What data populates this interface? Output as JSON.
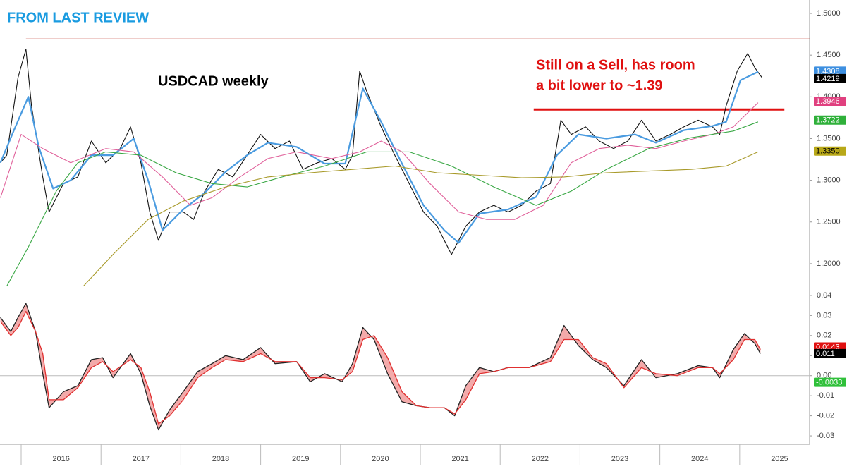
{
  "chart_data": [
    {
      "type": "line",
      "title": "FROM LAST REVIEW",
      "annotations": [
        "USDCAD weekly",
        "Still on a Sell, has room",
        "a bit lower to ~1.39"
      ],
      "xlim": [
        2015.735,
        2025.876
      ],
      "ylim": [
        1.1737,
        1.5161
      ],
      "yticks": [
        {
          "value": 1.5,
          "label": "1.5000"
        },
        {
          "value": 1.45,
          "label": "1.4500"
        },
        {
          "value": 1.4,
          "label": "1.4000"
        },
        {
          "value": 1.35,
          "label": "1.3500"
        },
        {
          "value": 1.3,
          "label": "1.3000"
        },
        {
          "value": 1.25,
          "label": "1.2500"
        },
        {
          "value": 1.2,
          "label": "1.2000"
        }
      ],
      "x": [
        2015.74,
        2015.82,
        2015.96,
        2016.06,
        2016.13,
        2016.27,
        2016.35,
        2016.53,
        2016.71,
        2016.88,
        2017.06,
        2017.24,
        2017.37,
        2017.5,
        2017.61,
        2017.72,
        2017.86,
        2018.03,
        2018.16,
        2018.3,
        2018.47,
        2018.65,
        2018.83,
        2019.0,
        2019.18,
        2019.36,
        2019.53,
        2019.71,
        2019.89,
        2020.06,
        2020.15,
        2020.24,
        2020.33,
        2020.51,
        2020.68,
        2020.86,
        2021.04,
        2021.21,
        2021.39,
        2021.57,
        2021.74,
        2021.92,
        2022.1,
        2022.27,
        2022.45,
        2022.63,
        2022.76,
        2022.89,
        2023.07,
        2023.24,
        2023.42,
        2023.6,
        2023.77,
        2023.95,
        2024.13,
        2024.3,
        2024.48,
        2024.66,
        2024.75,
        2024.83,
        2024.97,
        2025.1,
        2025.19,
        2025.28
      ],
      "series": [
        {
          "color": "#111111",
          "values": [
            1.321,
            1.33,
            1.423,
            1.457,
            1.389,
            1.304,
            1.262,
            1.296,
            1.304,
            1.347,
            1.321,
            1.338,
            1.364,
            1.321,
            1.262,
            1.228,
            1.262,
            1.262,
            1.253,
            1.287,
            1.313,
            1.304,
            1.33,
            1.355,
            1.338,
            1.347,
            1.313,
            1.321,
            1.326,
            1.313,
            1.33,
            1.431,
            1.406,
            1.364,
            1.33,
            1.296,
            1.262,
            1.245,
            1.211,
            1.245,
            1.262,
            1.27,
            1.262,
            1.27,
            1.287,
            1.296,
            1.372,
            1.355,
            1.364,
            1.347,
            1.338,
            1.347,
            1.372,
            1.347,
            1.355,
            1.364,
            1.372,
            1.364,
            1.355,
            1.389,
            1.431,
            1.452,
            1.435,
            1.423
          ]
        },
        {
          "color": "#4a9be0",
          "x": [
            2015.74,
            2015.91,
            2016.09,
            2016.22,
            2016.4,
            2016.62,
            2016.88,
            2017.15,
            2017.41,
            2017.59,
            2017.77,
            2018.03,
            2018.3,
            2018.56,
            2018.83,
            2019.09,
            2019.45,
            2019.8,
            2020.06,
            2020.28,
            2020.51,
            2020.77,
            2021.04,
            2021.3,
            2021.48,
            2021.74,
            2022.1,
            2022.45,
            2022.71,
            2022.98,
            2023.33,
            2023.69,
            2023.95,
            2024.3,
            2024.66,
            2024.83,
            2025.01,
            2025.23
          ],
          "values": [
            1.321,
            1.36,
            1.4,
            1.34,
            1.29,
            1.3,
            1.33,
            1.33,
            1.35,
            1.3,
            1.24,
            1.265,
            1.285,
            1.31,
            1.33,
            1.345,
            1.34,
            1.32,
            1.32,
            1.41,
            1.37,
            1.32,
            1.27,
            1.24,
            1.225,
            1.26,
            1.265,
            1.28,
            1.33,
            1.355,
            1.35,
            1.355,
            1.345,
            1.36,
            1.365,
            1.37,
            1.42,
            1.43
          ]
        },
        {
          "color": "#e0609a",
          "x": [
            2015.74,
            2016.0,
            2016.27,
            2016.62,
            2017.06,
            2017.41,
            2017.77,
            2018.12,
            2018.39,
            2018.74,
            2019.09,
            2019.45,
            2019.89,
            2020.24,
            2020.51,
            2020.77,
            2021.12,
            2021.48,
            2021.83,
            2022.18,
            2022.54,
            2022.89,
            2023.24,
            2023.6,
            2023.95,
            2024.3,
            2024.66,
            2024.92,
            2025.23
          ],
          "values": [
            1.279,
            1.355,
            1.338,
            1.321,
            1.338,
            1.334,
            1.304,
            1.27,
            1.279,
            1.304,
            1.326,
            1.334,
            1.326,
            1.334,
            1.347,
            1.334,
            1.296,
            1.262,
            1.253,
            1.253,
            1.27,
            1.321,
            1.338,
            1.342,
            1.338,
            1.347,
            1.355,
            1.364,
            1.393
          ]
        },
        {
          "color": "#3aa845",
          "x": [
            2015.82,
            2016.09,
            2016.44,
            2016.71,
            2017.06,
            2017.5,
            2017.94,
            2018.39,
            2018.83,
            2019.27,
            2019.8,
            2020.33,
            2020.86,
            2021.39,
            2021.92,
            2022.45,
            2022.89,
            2023.33,
            2023.86,
            2024.39,
            2024.92,
            2025.23
          ],
          "values": [
            1.173,
            1.22,
            1.287,
            1.321,
            1.334,
            1.33,
            1.309,
            1.296,
            1.292,
            1.304,
            1.317,
            1.334,
            1.334,
            1.317,
            1.292,
            1.27,
            1.287,
            1.313,
            1.338,
            1.351,
            1.359,
            1.37
          ]
        },
        {
          "color": "#a89a2a",
          "x": [
            2016.78,
            2017.15,
            2017.59,
            2018.03,
            2018.56,
            2019.09,
            2019.62,
            2020.15,
            2020.68,
            2021.21,
            2021.74,
            2022.27,
            2022.8,
            2023.33,
            2023.86,
            2024.39,
            2024.83,
            2025.23
          ],
          "values": [
            1.173,
            1.211,
            1.253,
            1.275,
            1.292,
            1.304,
            1.309,
            1.313,
            1.317,
            1.309,
            1.306,
            1.303,
            1.304,
            1.309,
            1.311,
            1.313,
            1.317,
            1.334
          ]
        }
      ],
      "hlines": [
        {
          "value": 1.4694,
          "x": [
            2016.06,
            2025.876
          ],
          "color": "#c0392b"
        },
        {
          "value": 1.3848,
          "x": [
            2022.42,
            2025.56
          ],
          "color": "#e01010"
        }
      ],
      "tags": {
        "values": [
          1.4308,
          1.4219,
          1.3946,
          1.3722,
          1.335
        ],
        "value_labels": [
          "1.4308",
          "1.4219",
          "1.3946",
          "1.3722",
          "1.3350"
        ],
        "colors": [
          "#3d8fe0",
          "#000000",
          "#e0407f",
          "#2fb03a",
          "#b8a818"
        ]
      }
    },
    {
      "type": "line",
      "xlim": [
        2015.735,
        2025.876
      ],
      "xticks": [
        2016,
        2017,
        2018,
        2019,
        2020,
        2021,
        2022,
        2023,
        2024,
        2025
      ],
      "ylim": [
        -0.0342,
        0.0449
      ],
      "yticks": [
        0.04,
        0.03,
        0.02,
        0.01,
        {
          "value": 0,
          "label": "0.00"
        },
        -0.01,
        -0.02,
        -0.03
      ],
      "x": [
        2015.74,
        2015.87,
        2015.96,
        2016.06,
        2016.18,
        2016.27,
        2016.35,
        2016.53,
        2016.71,
        2016.88,
        2017.02,
        2017.15,
        2017.37,
        2017.5,
        2017.61,
        2017.72,
        2017.86,
        2018.03,
        2018.21,
        2018.39,
        2018.56,
        2018.78,
        2019.0,
        2019.18,
        2019.45,
        2019.62,
        2019.8,
        2020.02,
        2020.15,
        2020.28,
        2020.42,
        2020.59,
        2020.77,
        2020.95,
        2021.12,
        2021.3,
        2021.43,
        2021.57,
        2021.74,
        2021.92,
        2022.1,
        2022.36,
        2022.63,
        2022.8,
        2022.98,
        2023.16,
        2023.33,
        2023.55,
        2023.77,
        2023.95,
        2024.22,
        2024.48,
        2024.66,
        2024.75,
        2024.92,
        2025.06,
        2025.19,
        2025.26
      ],
      "series": [
        {
          "color": "#222222",
          "values": [
            0.029,
            0.022,
            0.029,
            0.036,
            0.022,
            0.001,
            -0.016,
            -0.008,
            -0.005,
            0.008,
            0.009,
            -0.001,
            0.011,
            0.001,
            -0.015,
            -0.027,
            -0.017,
            -0.008,
            0.002,
            0.006,
            0.01,
            0.008,
            0.014,
            0.006,
            0.007,
            -0.003,
            0.001,
            -0.003,
            0.006,
            0.024,
            0.018,
            0.001,
            -0.013,
            -0.015,
            -0.016,
            -0.016,
            -0.02,
            -0.005,
            0.004,
            0.002,
            0.004,
            0.004,
            0.009,
            0.025,
            0.015,
            0.008,
            0.004,
            -0.005,
            0.008,
            -0.001,
            0.001,
            0.005,
            0.004,
            -0.001,
            0.013,
            0.021,
            0.016,
            0.011
          ]
        },
        {
          "color": "#e03030",
          "values": [
            0.027,
            0.02,
            0.024,
            0.032,
            0.022,
            0.011,
            -0.012,
            -0.012,
            -0.006,
            0.004,
            0.007,
            0.002,
            0.008,
            0.004,
            -0.008,
            -0.024,
            -0.02,
            -0.012,
            -0.001,
            0.004,
            0.008,
            0.007,
            0.011,
            0.007,
            0.007,
            -0.001,
            -0.001,
            -0.002,
            0.002,
            0.018,
            0.02,
            0.009,
            -0.008,
            -0.015,
            -0.016,
            -0.016,
            -0.019,
            -0.012,
            0.001,
            0.002,
            0.004,
            0.004,
            0.007,
            0.018,
            0.018,
            0.009,
            0.006,
            -0.006,
            0.004,
            0.001,
            0,
            0.004,
            0.004,
            0.001,
            0.008,
            0.018,
            0.018,
            0.013
          ]
        }
      ],
      "fill_color": "#f3aaaa",
      "hlines": [
        {
          "value": 0,
          "color": "#bbbbbb"
        }
      ],
      "tags": {
        "values": [
          0.0143,
          0.011,
          -0.0033
        ],
        "value_labels": [
          "0.0143",
          "0.011",
          "-0.0033"
        ],
        "colors": [
          "#e01010",
          "#000000",
          "#2fc03a"
        ]
      }
    }
  ]
}
